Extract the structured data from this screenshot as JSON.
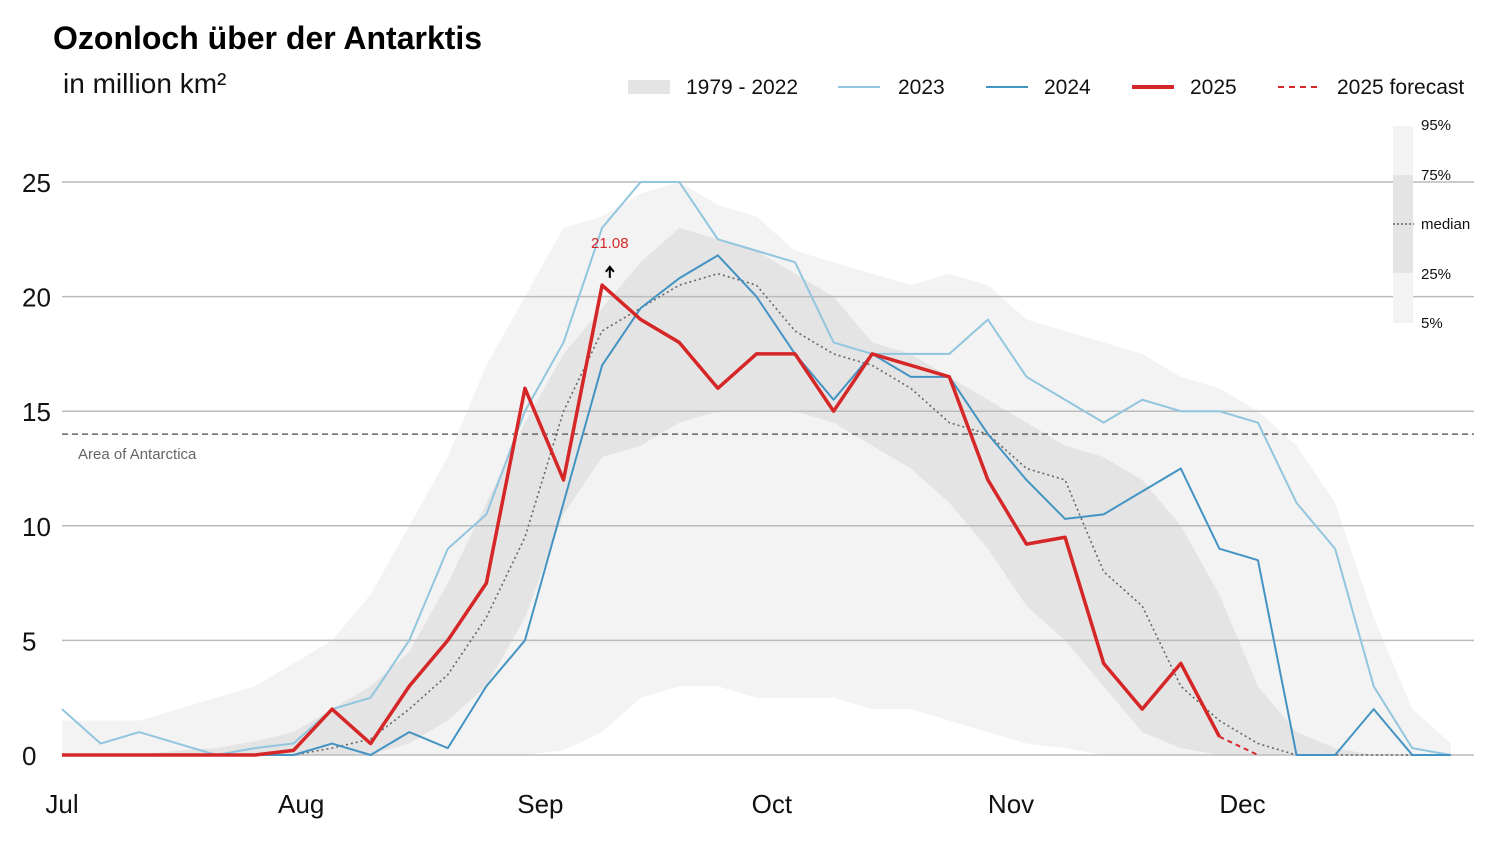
{
  "chart_data": {
    "type": "line",
    "title": "Ozonloch über der Antarktis",
    "subtitle": "in million km²",
    "ylim": [
      0,
      27
    ],
    "yticks": [
      0,
      5,
      10,
      15,
      20,
      25
    ],
    "xticks": [
      {
        "date": "07-01",
        "label": "Jul"
      },
      {
        "date": "08-01",
        "label": "Aug"
      },
      {
        "date": "09-01",
        "label": "Sep"
      },
      {
        "date": "10-01",
        "label": "Oct"
      },
      {
        "date": "11-01",
        "label": "Nov"
      },
      {
        "date": "12-01",
        "label": "Dec"
      }
    ],
    "grid": true,
    "legend_placement": "top-right",
    "x": [
      "07-01",
      "07-06",
      "07-11",
      "07-16",
      "07-21",
      "07-26",
      "07-31",
      "08-05",
      "08-10",
      "08-15",
      "08-20",
      "08-25",
      "08-30",
      "09-04",
      "09-09",
      "09-14",
      "09-19",
      "09-24",
      "09-29",
      "10-04",
      "10-09",
      "10-14",
      "10-19",
      "10-24",
      "10-29",
      "11-03",
      "11-08",
      "11-13",
      "11-18",
      "11-23",
      "11-28",
      "12-03",
      "12-08",
      "12-13",
      "12-18",
      "12-23",
      "12-28"
    ],
    "bands": {
      "name": "1979 - 2022",
      "p95": [
        1.5,
        1.5,
        1.5,
        2,
        2.5,
        3,
        4,
        5,
        7,
        10,
        13,
        17,
        20,
        23,
        23.5,
        24.5,
        25,
        24,
        23.5,
        22,
        21.5,
        21,
        20.5,
        21,
        20.5,
        19,
        18.5,
        18,
        17.5,
        16.5,
        16,
        15,
        13.5,
        11,
        6,
        2,
        0.5
      ],
      "p75": [
        0,
        0,
        0,
        0.2,
        0.3,
        0.6,
        1,
        2,
        3,
        4.5,
        7.5,
        11,
        14.5,
        17.5,
        19.5,
        21.5,
        23,
        22.5,
        22,
        21,
        20,
        18,
        17.5,
        16.5,
        15.5,
        14.5,
        13.5,
        13,
        12,
        10,
        7,
        3,
        1,
        0.3,
        0,
        0,
        0
      ],
      "median": [
        0,
        0,
        0,
        0,
        0,
        0,
        0,
        0.3,
        0.7,
        2,
        3.5,
        6,
        9.5,
        15,
        18.5,
        19.5,
        20.5,
        21,
        20.5,
        18.5,
        17.5,
        17,
        16,
        14.5,
        14,
        12.5,
        12,
        8,
        6.5,
        3,
        1.5,
        0.5,
        0,
        0,
        0,
        0,
        0
      ],
      "p25": [
        0,
        0,
        0,
        0,
        0,
        0,
        0,
        0,
        0,
        0.5,
        1.5,
        3,
        6,
        10.5,
        13,
        13.5,
        14.5,
        15,
        15,
        15,
        14.5,
        13.5,
        12.5,
        11,
        9,
        6.5,
        5,
        3,
        1,
        0.3,
        0,
        0,
        0,
        0,
        0,
        0,
        0
      ],
      "p5": [
        0,
        0,
        0,
        0,
        0,
        0,
        0,
        0,
        0,
        0,
        0,
        0,
        0,
        0.2,
        1,
        2.5,
        3,
        3,
        2.5,
        2.5,
        2.5,
        2,
        2,
        1.5,
        1,
        0.5,
        0.3,
        0,
        0,
        0,
        0,
        0,
        0,
        0,
        0,
        0,
        0
      ]
    },
    "series": [
      {
        "name": "2023",
        "color": "#92c5de",
        "values": [
          2,
          0.5,
          1,
          0.5,
          0,
          0.3,
          0.5,
          2,
          2.5,
          5,
          9,
          10.5,
          15,
          18,
          23,
          25,
          25,
          22.5,
          22,
          21.5,
          18,
          17.5,
          17.5,
          17.5,
          19,
          16.5,
          15.5,
          14.5,
          15.5,
          15,
          15,
          14.5,
          11,
          9,
          3,
          0.3,
          0
        ]
      },
      {
        "name": "2024",
        "color": "#4393c3",
        "values": [
          0,
          0,
          0,
          0,
          0,
          0,
          0,
          0.5,
          0,
          1,
          0.3,
          3,
          5,
          11,
          17,
          19.5,
          20.8,
          21.8,
          20,
          17.5,
          15.5,
          17.5,
          16.5,
          16.5,
          14,
          12,
          10.3,
          10.5,
          11.5,
          12.5,
          9,
          8.5,
          0,
          0,
          2,
          0,
          0
        ]
      },
      {
        "name": "2025",
        "color": "#d62728",
        "values": [
          0,
          0,
          0,
          0,
          0,
          0,
          0.2,
          2,
          0.5,
          3,
          5,
          7.5,
          16,
          12,
          20.5,
          19,
          18,
          16,
          17.5,
          17.5,
          15,
          17.5,
          17,
          16.5,
          12,
          9.2,
          9.5,
          4,
          2,
          4,
          0.8,
          null,
          null,
          null,
          null,
          null,
          null
        ]
      },
      {
        "name": "2025 forecast",
        "color": "#d62728",
        "dashed": true,
        "x": [
          "11-28",
          "12-03"
        ],
        "values": [
          0.8,
          0
        ]
      }
    ],
    "annotations": [
      {
        "date": "09-10",
        "value": 21.08,
        "label": "21.08"
      }
    ],
    "reference_line": {
      "value": 14,
      "label": "Area of Antarctica"
    },
    "percentile_legend": [
      "95%",
      "75%",
      "median",
      "25%",
      "5%"
    ]
  }
}
